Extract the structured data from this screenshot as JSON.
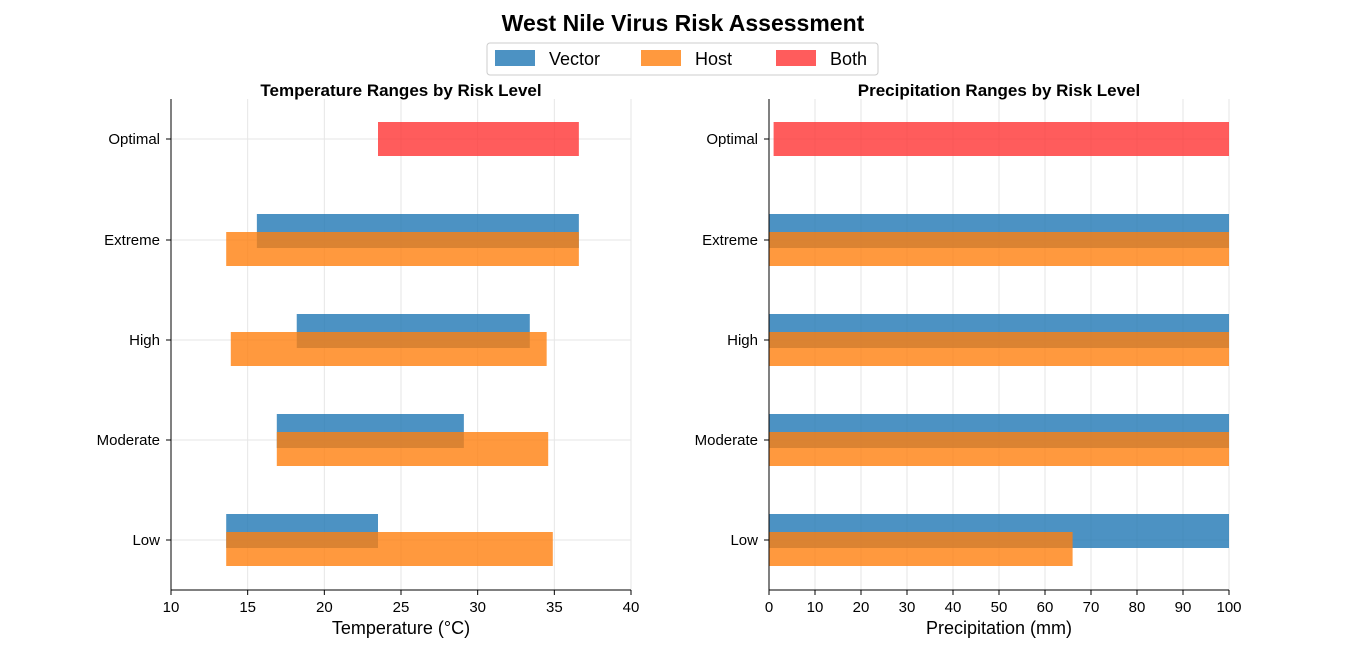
{
  "title": "West Nile Virus Risk Assessment",
  "legend": {
    "items": [
      {
        "label": "Vector",
        "color": "#1f77b4"
      },
      {
        "label": "Host",
        "color": "#ff7f0e"
      },
      {
        "label": "Both",
        "color": "#ff3333"
      }
    ]
  },
  "chart_data": [
    {
      "type": "bar",
      "orientation": "horizontal-range",
      "title": "Temperature Ranges by Risk Level",
      "xlabel": "Temperature (°C)",
      "ylabel": "",
      "xlim": [
        10,
        40
      ],
      "xticks": [
        10,
        15,
        20,
        25,
        30,
        35,
        40
      ],
      "categories": [
        "Low",
        "Moderate",
        "High",
        "Extreme",
        "Optimal"
      ],
      "grid": true,
      "series": [
        {
          "name": "Vector",
          "ranges": [
            [
              13.6,
              23.5
            ],
            [
              16.9,
              29.1
            ],
            [
              18.2,
              33.4
            ],
            [
              15.6,
              36.6
            ],
            null
          ]
        },
        {
          "name": "Host",
          "ranges": [
            [
              13.6,
              34.9
            ],
            [
              16.9,
              34.6
            ],
            [
              13.9,
              34.5
            ],
            [
              13.6,
              36.6
            ],
            null
          ]
        },
        {
          "name": "Both",
          "ranges": [
            null,
            null,
            null,
            null,
            [
              23.5,
              36.6
            ]
          ]
        }
      ]
    },
    {
      "type": "bar",
      "orientation": "horizontal-range",
      "title": "Precipitation Ranges by Risk Level",
      "xlabel": "Precipitation (mm)",
      "ylabel": "",
      "xlim": [
        0,
        100
      ],
      "xticks": [
        0,
        10,
        20,
        30,
        40,
        50,
        60,
        70,
        80,
        90,
        100
      ],
      "categories": [
        "Low",
        "Moderate",
        "High",
        "Extreme",
        "Optimal"
      ],
      "grid": true,
      "series": [
        {
          "name": "Vector",
          "ranges": [
            [
              0,
              100
            ],
            [
              0,
              100
            ],
            [
              0,
              100
            ],
            [
              0,
              100
            ],
            null
          ]
        },
        {
          "name": "Host",
          "ranges": [
            [
              0,
              66
            ],
            [
              0,
              100
            ],
            [
              0,
              100
            ],
            [
              0,
              100
            ],
            null
          ]
        },
        {
          "name": "Both",
          "ranges": [
            null,
            null,
            null,
            null,
            [
              1,
              100
            ]
          ]
        }
      ]
    }
  ]
}
